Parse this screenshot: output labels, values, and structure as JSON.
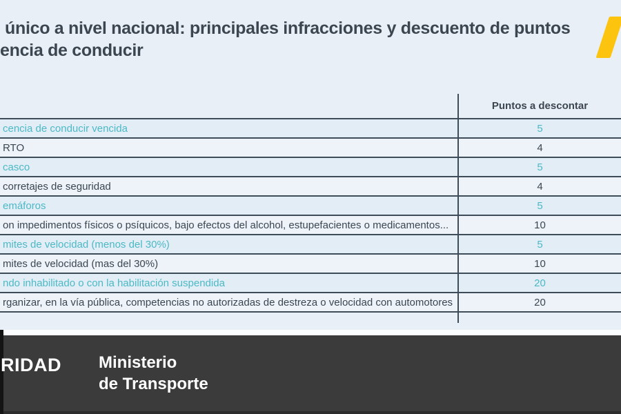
{
  "title": {
    "line1": "único a nivel nacional: principales infracciones y descuento de puntos",
    "line2": "encia de conducir"
  },
  "table": {
    "points_header": "Puntos a descontar",
    "rows": [
      {
        "infraction": "cencia de conducir vencida",
        "points": "5",
        "highlight": true
      },
      {
        "infraction": "RTO",
        "points": "4",
        "highlight": false
      },
      {
        "infraction": "casco",
        "points": "5",
        "highlight": true
      },
      {
        "infraction": "corretajes de seguridad",
        "points": "4",
        "highlight": false
      },
      {
        "infraction": "emáforos",
        "points": "5",
        "highlight": true
      },
      {
        "infraction": "on impedimentos físicos o psíquicos, bajo efectos del alcohol, estupefacientes o medicamentos...",
        "points": "10",
        "highlight": false
      },
      {
        "infraction": "mites de velocidad (menos del 30%)",
        "points": "5",
        "highlight": true
      },
      {
        "infraction": "mites de velocidad (mas del 30%)",
        "points": "10",
        "highlight": false
      },
      {
        "infraction": "ndo inhabilitado o con la habilitación suspendida",
        "points": "20",
        "highlight": true
      },
      {
        "infraction": "rganizar, en la vía pública, competencias no autorizadas de destreza o velocidad con automotores",
        "points": "20",
        "highlight": false
      }
    ]
  },
  "footer": {
    "logo_text": "RIDAD",
    "ministry_line1": "Ministerio",
    "ministry_line2": "de Transporte"
  },
  "colors": {
    "background": "#e9eff6",
    "accent_teal": "#4bb9c6",
    "text_dark": "#3c4650",
    "line_dark": "#3e4c59",
    "footer_bg": "#3b3b3b",
    "brand_yellow": "#fcc30f"
  }
}
